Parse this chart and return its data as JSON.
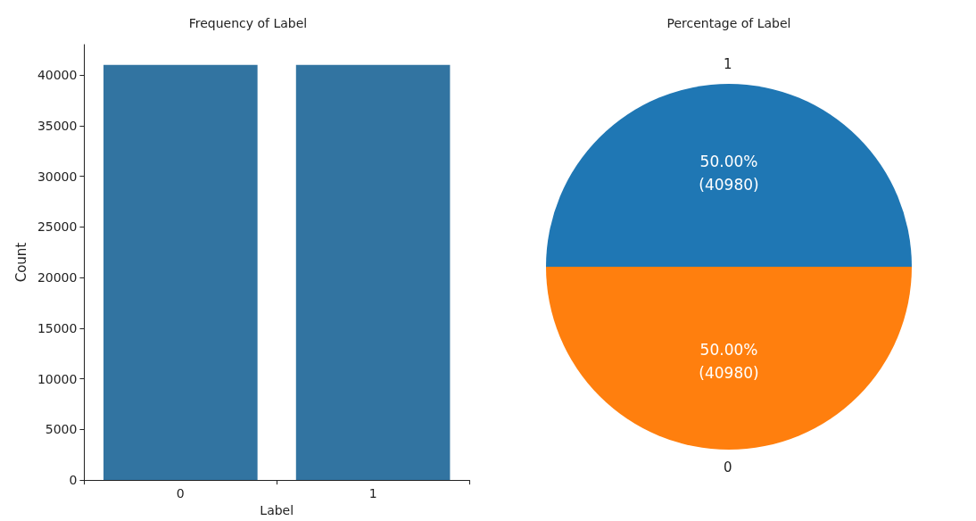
{
  "chart_data": [
    {
      "type": "bar",
      "title": "Frequency of Label",
      "xlabel": "Label",
      "ylabel": "Count",
      "categories": [
        "0",
        "1"
      ],
      "values": [
        41000,
        41000
      ],
      "color": "#3274a1",
      "ylim": [
        0,
        43000
      ],
      "yticks": [
        0,
        5000,
        10000,
        15000,
        20000,
        25000,
        30000,
        35000,
        40000
      ],
      "grid": false,
      "legend": false
    },
    {
      "type": "pie",
      "title": "Percentage of Label",
      "categories": [
        "1",
        "0"
      ],
      "values": [
        50,
        50
      ],
      "colors": [
        "#1f77b4",
        "#ff7f0e"
      ],
      "value_labels": [
        "50.00%\n(40980)",
        "50.00%\n(40980)"
      ],
      "legend": false
    }
  ]
}
